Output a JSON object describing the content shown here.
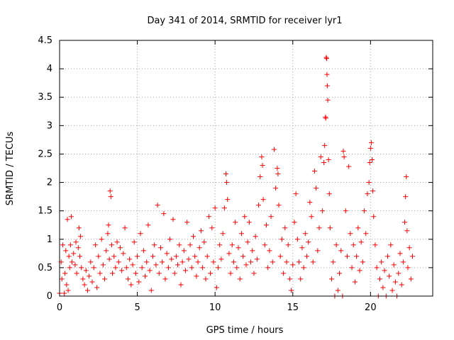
{
  "chart_data": {
    "type": "scatter",
    "title": "Day 341 of 2014, SRMTID for receiver lyr1",
    "xlabel": "GPS time / hours",
    "ylabel": "SRMTID / TECUs",
    "xlim": [
      0,
      24
    ],
    "ylim": [
      0,
      4.5
    ],
    "xticks": [
      0,
      5,
      10,
      15,
      20
    ],
    "xtick_labels": [
      "0",
      "5",
      "10",
      "15",
      "20"
    ],
    "yticks": [
      0,
      0.5,
      1,
      1.5,
      2,
      2.5,
      3,
      3.5,
      4,
      4.5
    ],
    "ytick_labels": [
      "0",
      "0.5",
      "1",
      "1.5",
      "2",
      "2.5",
      "3",
      "3.5",
      "4",
      "4.5"
    ],
    "grid": true,
    "marker": "plus",
    "color": "#ff0000",
    "series": [
      {
        "name": "SRMTID",
        "points": [
          [
            0.0,
            0.05
          ],
          [
            0.1,
            0.6
          ],
          [
            0.15,
            0.3
          ],
          [
            0.2,
            0.9
          ],
          [
            0.3,
            0.05
          ],
          [
            0.35,
            0.4
          ],
          [
            0.4,
            0.8
          ],
          [
            0.45,
            0.2
          ],
          [
            0.5,
            1.35
          ],
          [
            0.55,
            0.1
          ],
          [
            0.6,
            0.7
          ],
          [
            0.65,
            0.5
          ],
          [
            0.7,
            0.9
          ],
          [
            0.75,
            1.4
          ],
          [
            0.8,
            0.6
          ],
          [
            0.9,
            0.75
          ],
          [
            1.0,
            0.55
          ],
          [
            1.05,
            0.95
          ],
          [
            1.1,
            0.4
          ],
          [
            1.2,
            0.85
          ],
          [
            1.25,
            1.2
          ],
          [
            1.3,
            0.7
          ],
          [
            1.35,
            1.05
          ],
          [
            1.4,
            0.5
          ],
          [
            1.5,
            0.3
          ],
          [
            1.6,
            0.2
          ],
          [
            1.7,
            0.45
          ],
          [
            1.8,
            0.1
          ],
          [
            1.9,
            0.35
          ],
          [
            2.0,
            0.6
          ],
          [
            2.1,
            0.25
          ],
          [
            2.2,
            0.5
          ],
          [
            2.3,
            0.9
          ],
          [
            2.4,
            0.15
          ],
          [
            2.5,
            0.7
          ],
          [
            2.6,
            0.4
          ],
          [
            2.7,
            1.0
          ],
          [
            2.8,
            0.55
          ],
          [
            2.9,
            0.3
          ],
          [
            3.0,
            0.8
          ],
          [
            3.1,
            1.1
          ],
          [
            3.15,
            1.25
          ],
          [
            3.2,
            0.65
          ],
          [
            3.25,
            1.85
          ],
          [
            3.3,
            1.75
          ],
          [
            3.35,
            0.9
          ],
          [
            3.4,
            0.4
          ],
          [
            3.5,
            0.7
          ],
          [
            3.6,
            0.5
          ],
          [
            3.7,
            0.95
          ],
          [
            3.8,
            0.6
          ],
          [
            3.9,
            0.85
          ],
          [
            4.0,
            0.45
          ],
          [
            4.1,
            0.75
          ],
          [
            4.2,
            1.2
          ],
          [
            4.3,
            0.5
          ],
          [
            4.4,
            0.3
          ],
          [
            4.5,
            0.65
          ],
          [
            4.6,
            0.2
          ],
          [
            4.7,
            0.55
          ],
          [
            4.8,
            0.95
          ],
          [
            4.9,
            0.4
          ],
          [
            5.0,
            0.7
          ],
          [
            5.1,
            0.25
          ],
          [
            5.2,
            1.1
          ],
          [
            5.3,
            0.5
          ],
          [
            5.4,
            0.8
          ],
          [
            5.5,
            0.35
          ],
          [
            5.6,
            0.6
          ],
          [
            5.7,
            1.25
          ],
          [
            5.8,
            0.45
          ],
          [
            5.9,
            0.1
          ],
          [
            6.0,
            0.7
          ],
          [
            6.1,
            0.9
          ],
          [
            6.2,
            0.55
          ],
          [
            6.3,
            1.6
          ],
          [
            6.4,
            0.4
          ],
          [
            6.5,
            0.85
          ],
          [
            6.6,
            0.6
          ],
          [
            6.7,
            1.45
          ],
          [
            6.8,
            0.3
          ],
          [
            6.9,
            0.75
          ],
          [
            7.0,
            0.5
          ],
          [
            7.1,
            1.0
          ],
          [
            7.2,
            0.65
          ],
          [
            7.3,
            1.35
          ],
          [
            7.4,
            0.4
          ],
          [
            7.5,
            0.7
          ],
          [
            7.6,
            0.55
          ],
          [
            7.7,
            0.9
          ],
          [
            7.8,
            0.2
          ],
          [
            7.9,
            0.6
          ],
          [
            8.0,
            0.8
          ],
          [
            8.1,
            0.45
          ],
          [
            8.2,
            1.3
          ],
          [
            8.3,
            0.65
          ],
          [
            8.4,
            0.9
          ],
          [
            8.5,
            0.5
          ],
          [
            8.6,
            1.05
          ],
          [
            8.7,
            0.7
          ],
          [
            8.8,
            0.35
          ],
          [
            8.9,
            0.6
          ],
          [
            9.0,
            0.85
          ],
          [
            9.1,
            1.15
          ],
          [
            9.2,
            0.5
          ],
          [
            9.3,
            0.95
          ],
          [
            9.4,
            0.3
          ],
          [
            9.5,
            0.7
          ],
          [
            9.6,
            1.4
          ],
          [
            9.7,
            0.4
          ],
          [
            9.8,
            1.2
          ],
          [
            9.9,
            0.6
          ],
          [
            10.0,
            1.55
          ],
          [
            10.1,
            0.15
          ],
          [
            10.2,
            0.5
          ],
          [
            10.3,
            0.9
          ],
          [
            10.4,
            0.65
          ],
          [
            10.5,
            1.1
          ],
          [
            10.6,
            1.55
          ],
          [
            10.7,
            2.15
          ],
          [
            10.75,
            2.0
          ],
          [
            10.8,
            1.7
          ],
          [
            10.9,
            0.75
          ],
          [
            11.0,
            0.4
          ],
          [
            11.1,
            0.9
          ],
          [
            11.2,
            0.6
          ],
          [
            11.3,
            1.3
          ],
          [
            11.4,
            0.5
          ],
          [
            11.5,
            0.85
          ],
          [
            11.6,
            0.3
          ],
          [
            11.7,
            1.1
          ],
          [
            11.8,
            0.7
          ],
          [
            11.9,
            1.4
          ],
          [
            12.0,
            0.55
          ],
          [
            12.1,
            0.95
          ],
          [
            12.2,
            1.3
          ],
          [
            12.3,
            0.6
          ],
          [
            12.4,
            0.8
          ],
          [
            12.5,
            0.4
          ],
          [
            12.6,
            1.05
          ],
          [
            12.7,
            0.65
          ],
          [
            12.8,
            1.6
          ],
          [
            12.9,
            2.1
          ],
          [
            13.0,
            2.45
          ],
          [
            13.05,
            2.3
          ],
          [
            13.1,
            1.7
          ],
          [
            13.2,
            0.9
          ],
          [
            13.3,
            1.25
          ],
          [
            13.4,
            0.5
          ],
          [
            13.5,
            0.8
          ],
          [
            13.6,
            1.4
          ],
          [
            13.7,
            0.6
          ],
          [
            13.8,
            2.58
          ],
          [
            13.9,
            1.9
          ],
          [
            14.0,
            2.25
          ],
          [
            14.05,
            2.15
          ],
          [
            14.1,
            1.6
          ],
          [
            14.2,
            0.7
          ],
          [
            14.3,
            1.0
          ],
          [
            14.4,
            0.4
          ],
          [
            14.5,
            1.2
          ],
          [
            14.6,
            0.6
          ],
          [
            14.7,
            0.9
          ],
          [
            14.8,
            0.3
          ],
          [
            14.9,
            0.1
          ],
          [
            15.0,
            0.55
          ],
          [
            15.1,
            1.3
          ],
          [
            15.2,
            1.8
          ],
          [
            15.3,
            1.0
          ],
          [
            15.4,
            0.6
          ],
          [
            15.5,
            0.3
          ],
          [
            15.6,
            0.85
          ],
          [
            15.7,
            0.5
          ],
          [
            15.8,
            1.1
          ],
          [
            15.9,
            0.7
          ],
          [
            16.0,
            0.95
          ],
          [
            16.1,
            1.65
          ],
          [
            16.2,
            1.4
          ],
          [
            16.3,
            0.6
          ],
          [
            16.4,
            2.2
          ],
          [
            16.5,
            1.9
          ],
          [
            16.6,
            0.8
          ],
          [
            16.7,
            1.2
          ],
          [
            16.8,
            2.45
          ],
          [
            16.9,
            1.5
          ],
          [
            17.0,
            2.35
          ],
          [
            17.05,
            2.65
          ],
          [
            17.1,
            3.15
          ],
          [
            17.12,
            3.13
          ],
          [
            17.15,
            4.2
          ],
          [
            17.18,
            4.18
          ],
          [
            17.2,
            3.9
          ],
          [
            17.22,
            3.7
          ],
          [
            17.25,
            3.45
          ],
          [
            17.3,
            2.4
          ],
          [
            17.35,
            1.8
          ],
          [
            17.4,
            1.2
          ],
          [
            17.5,
            0.3
          ],
          [
            17.6,
            0.6
          ],
          [
            17.7,
            0.0
          ],
          [
            17.8,
            0.9
          ],
          [
            17.9,
            0.1
          ],
          [
            18.0,
            0.4
          ],
          [
            18.1,
            0.8
          ],
          [
            18.2,
            0.0
          ],
          [
            18.25,
            2.55
          ],
          [
            18.3,
            2.45
          ],
          [
            18.4,
            1.5
          ],
          [
            18.5,
            0.7
          ],
          [
            18.6,
            2.28
          ],
          [
            18.7,
            1.1
          ],
          [
            18.8,
            0.5
          ],
          [
            18.9,
            0.9
          ],
          [
            19.0,
            0.25
          ],
          [
            19.1,
            0.7
          ],
          [
            19.2,
            1.2
          ],
          [
            19.3,
            0.45
          ],
          [
            19.4,
            0.95
          ],
          [
            19.5,
            0.6
          ],
          [
            19.6,
            1.5
          ],
          [
            19.7,
            1.1
          ],
          [
            19.8,
            1.8
          ],
          [
            19.9,
            2.0
          ],
          [
            19.95,
            2.35
          ],
          [
            20.0,
            2.6
          ],
          [
            20.05,
            2.7
          ],
          [
            20.1,
            2.4
          ],
          [
            20.15,
            1.85
          ],
          [
            20.2,
            1.4
          ],
          [
            20.3,
            0.9
          ],
          [
            20.4,
            0.5
          ],
          [
            20.5,
            0.0
          ],
          [
            20.6,
            0.3
          ],
          [
            20.7,
            0.6
          ],
          [
            20.8,
            0.15
          ],
          [
            20.9,
            0.45
          ],
          [
            21.0,
            0.0
          ],
          [
            21.1,
            0.7
          ],
          [
            21.2,
            0.35
          ],
          [
            21.3,
            0.9
          ],
          [
            21.4,
            0.1
          ],
          [
            21.5,
            0.55
          ],
          [
            21.6,
            0.25
          ],
          [
            21.7,
            0.0
          ],
          [
            21.8,
            0.4
          ],
          [
            21.9,
            0.75
          ],
          [
            22.0,
            0.2
          ],
          [
            22.1,
            0.6
          ],
          [
            22.2,
            1.3
          ],
          [
            22.25,
            1.75
          ],
          [
            22.3,
            2.1
          ],
          [
            22.35,
            1.15
          ],
          [
            22.4,
            0.5
          ],
          [
            22.5,
            0.85
          ],
          [
            22.6,
            0.3
          ],
          [
            22.7,
            0.7
          ]
        ]
      }
    ]
  }
}
